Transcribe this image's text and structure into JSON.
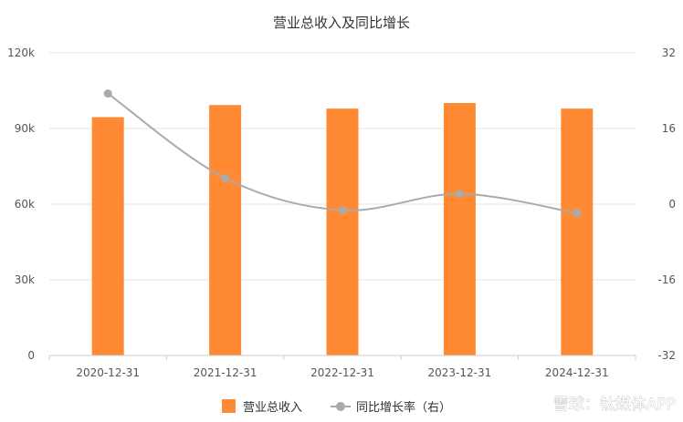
{
  "chart_data": {
    "type": "bar",
    "title": "营业总收入及同比增长",
    "categories": [
      "2020-12-31",
      "2021-12-31",
      "2022-12-31",
      "2023-12-31",
      "2024-12-31"
    ],
    "series": [
      {
        "name": "营业总收入",
        "type": "bar",
        "axis": "left",
        "values": [
          94500,
          99300,
          97900,
          100100,
          97900
        ],
        "color": "#ff8a33"
      },
      {
        "name": "同比增长率（右）",
        "type": "line",
        "axis": "right",
        "smooth": true,
        "values": [
          23.4,
          5.5,
          -1.3,
          2.2,
          -1.9
        ],
        "color": "#aaaaaa"
      }
    ],
    "y_left": {
      "ticks": [
        "0",
        "30k",
        "60k",
        "90k",
        "120k"
      ],
      "min": 0,
      "max": 120000
    },
    "y_right": {
      "ticks": [
        "-32",
        "-16",
        "0",
        "16",
        "32"
      ],
      "min": -32,
      "max": 32
    },
    "grid": true,
    "legend_position": "bottom-center"
  },
  "watermark": "雪球：钛媒体APP"
}
